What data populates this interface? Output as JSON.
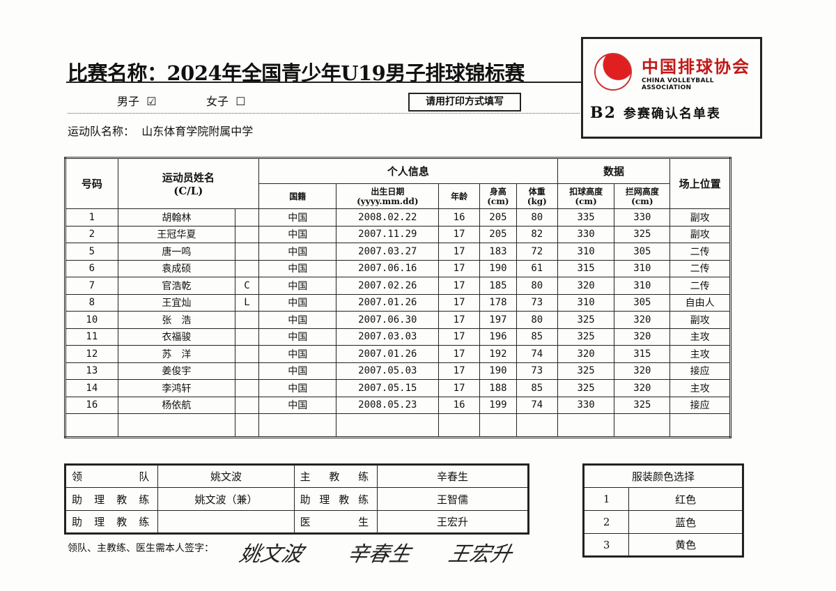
{
  "header": {
    "title": "比赛名称：2024年全国青少年U19男子排球锦标赛",
    "male_label": "男子",
    "male_checked": "☑",
    "female_label": "女子",
    "female_checked": "☐",
    "print_note": "请用打印方式填写",
    "team_label": "运动队名称：",
    "team_name": "山东体育学院附属中学"
  },
  "logo": {
    "name_cn": "中国排球协会",
    "name_en": "CHINA VOLLEYBALL ASSOCIATION",
    "form_code": "B2",
    "form_name": "参赛确认名单表",
    "brand_color": "#c01818"
  },
  "table": {
    "headers": {
      "number": "号码",
      "name": "运动员姓名",
      "cl": "(C/L)",
      "personal": "个人信息",
      "stats": "数据",
      "position": "场上位置",
      "nationality": "国籍",
      "birth": "出生日期",
      "birth_fmt": "(yyyy.mm.dd)",
      "age": "年龄",
      "height": "身高",
      "height_unit": "(cm)",
      "weight": "体重",
      "weight_unit": "(kg)",
      "spike": "扣球高度",
      "spike_unit": "(cm)",
      "block": "拦网高度",
      "block_unit": "(cm)"
    },
    "rows": [
      [
        "1",
        "胡翰林",
        "",
        "中国",
        "2008.02.22",
        "16",
        "205",
        "80",
        "335",
        "330",
        "副攻"
      ],
      [
        "2",
        "王冠华夏",
        "",
        "中国",
        "2007.11.29",
        "17",
        "205",
        "82",
        "330",
        "325",
        "副攻"
      ],
      [
        "5",
        "唐一鸣",
        "",
        "中国",
        "2007.03.27",
        "17",
        "183",
        "72",
        "310",
        "305",
        "二传"
      ],
      [
        "6",
        "袁成硕",
        "",
        "中国",
        "2007.06.16",
        "17",
        "190",
        "61",
        "315",
        "310",
        "二传"
      ],
      [
        "7",
        "官浩乾",
        "C",
        "中国",
        "2007.02.26",
        "17",
        "185",
        "80",
        "320",
        "310",
        "二传"
      ],
      [
        "8",
        "王宜灿",
        "L",
        "中国",
        "2007.01.26",
        "17",
        "178",
        "73",
        "310",
        "305",
        "自由人"
      ],
      [
        "10",
        "张　浩",
        "",
        "中国",
        "2007.06.30",
        "17",
        "197",
        "80",
        "325",
        "320",
        "副攻"
      ],
      [
        "11",
        "衣福骏",
        "",
        "中国",
        "2007.03.03",
        "17",
        "196",
        "85",
        "325",
        "320",
        "主攻"
      ],
      [
        "12",
        "苏　洋",
        "",
        "中国",
        "2007.01.26",
        "17",
        "192",
        "74",
        "320",
        "315",
        "主攻"
      ],
      [
        "13",
        "姜俊宇",
        "",
        "中国",
        "2007.05.03",
        "17",
        "190",
        "73",
        "325",
        "320",
        "接应"
      ],
      [
        "14",
        "李鸿轩",
        "",
        "中国",
        "2007.05.15",
        "17",
        "188",
        "85",
        "325",
        "320",
        "主攻"
      ],
      [
        "16",
        "杨依航",
        "",
        "中国",
        "2008.05.23",
        "16",
        "199",
        "74",
        "330",
        "325",
        "接应"
      ]
    ]
  },
  "staff": [
    {
      "l1": "领队",
      "v1": "姚文波",
      "l2": "主教练",
      "v2": "辛春生"
    },
    {
      "l1": "助理教练",
      "v1": "姚文波（兼）",
      "l2": "助理教练",
      "v2": "王智儒"
    },
    {
      "l1": "助理教练",
      "v1": "",
      "l2": "医生",
      "v2": "王宏升"
    }
  ],
  "uniform": {
    "title": "服装颜色选择",
    "options": [
      [
        "1",
        "红色"
      ],
      [
        "2",
        "蓝色"
      ],
      [
        "3",
        "黄色"
      ]
    ]
  },
  "signature": {
    "label": "领队、主教练、医生需本人签字：",
    "signatures": [
      "姚文波",
      "辛春生",
      "王宏升"
    ]
  }
}
